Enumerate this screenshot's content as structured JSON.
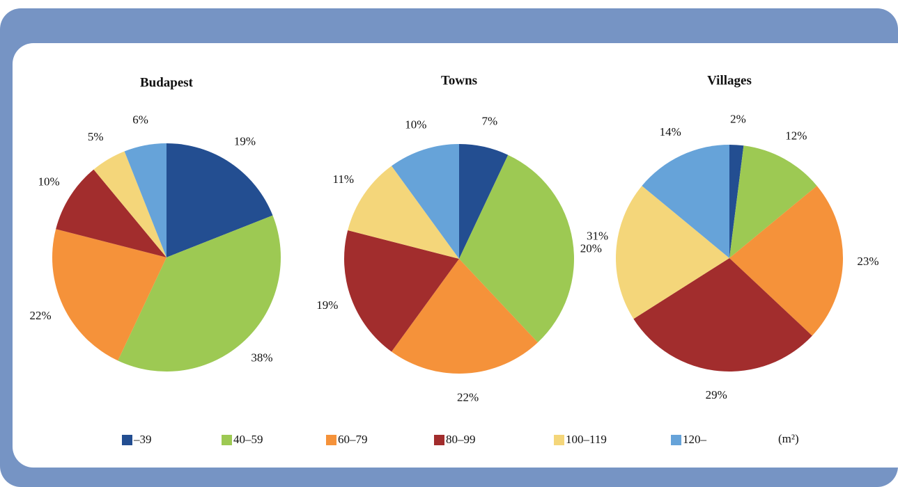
{
  "chart_data": [
    {
      "type": "pie",
      "title": "Budapest",
      "values": [
        19,
        38,
        22,
        10,
        5,
        6
      ],
      "value_labels": [
        "19%",
        "38%",
        "22%",
        "10%",
        "5%",
        "6%"
      ]
    },
    {
      "type": "pie",
      "title": "Towns",
      "values": [
        7,
        31,
        22,
        19,
        11,
        10
      ],
      "value_labels": [
        "7%",
        "31%",
        "22%",
        "19%",
        "11%",
        "10%"
      ]
    },
    {
      "type": "pie",
      "title": "Villages",
      "values": [
        2,
        12,
        23,
        29,
        20,
        14
      ],
      "value_labels": [
        "2%",
        "12%",
        "23%",
        "29%",
        "20%",
        "14%"
      ]
    }
  ],
  "legend": {
    "categories": [
      "–39",
      "40–59",
      "60–79",
      "80–99",
      "100–119",
      "120–"
    ],
    "colors": [
      "#234e91",
      "#9dc953",
      "#f5923a",
      "#a22d2d",
      "#f4d67a",
      "#66a3d9"
    ],
    "unit": "(m²)"
  }
}
